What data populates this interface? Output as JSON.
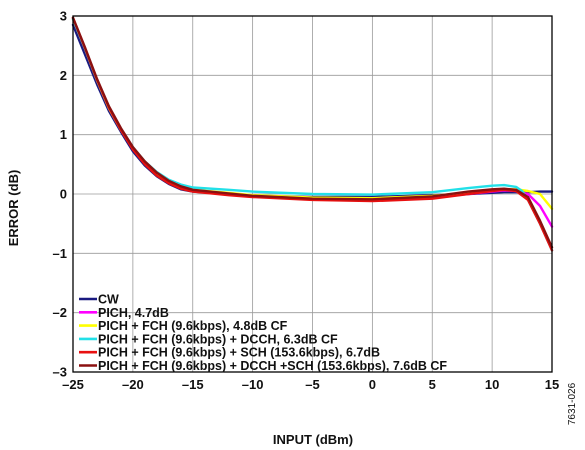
{
  "figure_id": "7631-026",
  "chart_data": {
    "type": "line",
    "title": "",
    "xlabel": "INPUT (dBm)",
    "ylabel": "ERROR (dB)",
    "xlim": [
      -25,
      15
    ],
    "ylim": [
      -3,
      3
    ],
    "xticks": [
      -25,
      -20,
      -15,
      -10,
      -5,
      0,
      5,
      10,
      15
    ],
    "yticks": [
      3,
      2,
      1,
      0,
      -1,
      -2,
      -3
    ],
    "grid": true,
    "legend_position": "bottom-left",
    "series": [
      {
        "name": "CW",
        "color": "#1a1a80",
        "x": [
          -25,
          -24,
          -23,
          -22,
          -21,
          -20,
          -19,
          -18,
          -17,
          -16,
          -15,
          -12,
          -10,
          -5,
          0,
          5,
          8,
          10,
          11,
          12,
          13,
          14,
          15
        ],
        "y": [
          2.85,
          2.35,
          1.85,
          1.4,
          1.05,
          0.72,
          0.48,
          0.3,
          0.17,
          0.08,
          0.04,
          0.0,
          -0.03,
          -0.05,
          -0.05,
          -0.02,
          0.0,
          0.02,
          0.03,
          0.03,
          0.03,
          0.04,
          0.04
        ]
      },
      {
        "name": "PICH, 4.7dB",
        "color": "#ff00ff",
        "x": [
          -25,
          -24,
          -23,
          -22,
          -21,
          -20,
          -19,
          -18,
          -17,
          -16,
          -15,
          -12,
          -10,
          -5,
          0,
          5,
          8,
          10,
          11,
          12,
          13,
          14,
          15
        ],
        "y": [
          2.95,
          2.45,
          1.92,
          1.45,
          1.08,
          0.76,
          0.52,
          0.33,
          0.2,
          0.11,
          0.06,
          0.0,
          -0.04,
          -0.08,
          -0.1,
          -0.06,
          0.0,
          0.04,
          0.06,
          0.05,
          0.0,
          -0.2,
          -0.55
        ]
      },
      {
        "name": "PICH + FCH (9.6kbps), 4.8dB CF",
        "color": "#ffff00",
        "x": [
          -25,
          -24,
          -23,
          -22,
          -21,
          -20,
          -19,
          -18,
          -17,
          -16,
          -15,
          -12,
          -10,
          -5,
          0,
          5,
          8,
          10,
          11,
          12,
          13,
          14,
          15
        ],
        "y": [
          2.95,
          2.45,
          1.92,
          1.45,
          1.08,
          0.76,
          0.52,
          0.34,
          0.21,
          0.12,
          0.07,
          0.02,
          -0.02,
          -0.06,
          -0.07,
          -0.03,
          0.02,
          0.06,
          0.08,
          0.08,
          0.05,
          0.0,
          -0.25
        ]
      },
      {
        "name": "PICH + FCH (9.6kbps) + DCCH, 6.3dB CF",
        "color": "#22e0e8",
        "x": [
          -25,
          -24,
          -23,
          -22,
          -21,
          -20,
          -19,
          -18,
          -17,
          -16,
          -15,
          -12,
          -10,
          -5,
          0,
          5,
          8,
          10,
          11,
          12,
          12.5,
          13,
          14,
          15
        ],
        "y": [
          2.95,
          2.45,
          1.93,
          1.47,
          1.1,
          0.79,
          0.55,
          0.37,
          0.24,
          0.16,
          0.11,
          0.07,
          0.04,
          0.0,
          -0.01,
          0.03,
          0.1,
          0.14,
          0.15,
          0.12,
          0.05,
          -0.1,
          -0.5,
          -0.95
        ]
      },
      {
        "name": "PICH + FCH (9.6kbps) + SCH (153.6kbps), 6.7dB",
        "color": "#e81010",
        "x": [
          -25,
          -24,
          -23,
          -22,
          -21,
          -20,
          -19,
          -18,
          -17,
          -16,
          -15,
          -12,
          -10,
          -5,
          0,
          5,
          8,
          10,
          11,
          12,
          13,
          14,
          15
        ],
        "y": [
          2.97,
          2.46,
          1.93,
          1.46,
          1.08,
          0.75,
          0.5,
          0.31,
          0.18,
          0.09,
          0.04,
          -0.02,
          -0.05,
          -0.1,
          -0.12,
          -0.08,
          0.0,
          0.05,
          0.07,
          0.05,
          -0.1,
          -0.5,
          -0.95
        ]
      },
      {
        "name": "PICH + FCH (9.6kbps) + DCCH +SCH (153.6kbps), 7.6dB CF",
        "color": "#8b1010",
        "x": [
          -25,
          -24,
          -23,
          -22,
          -21,
          -20,
          -19,
          -18,
          -17,
          -16,
          -15,
          -12,
          -10,
          -5,
          0,
          5,
          8,
          10,
          11,
          12,
          13,
          14,
          15
        ],
        "y": [
          2.97,
          2.47,
          1.94,
          1.48,
          1.11,
          0.79,
          0.55,
          0.36,
          0.22,
          0.13,
          0.07,
          0.01,
          -0.03,
          -0.08,
          -0.09,
          -0.04,
          0.04,
          0.08,
          0.09,
          0.07,
          -0.05,
          -0.45,
          -0.9
        ]
      }
    ]
  }
}
